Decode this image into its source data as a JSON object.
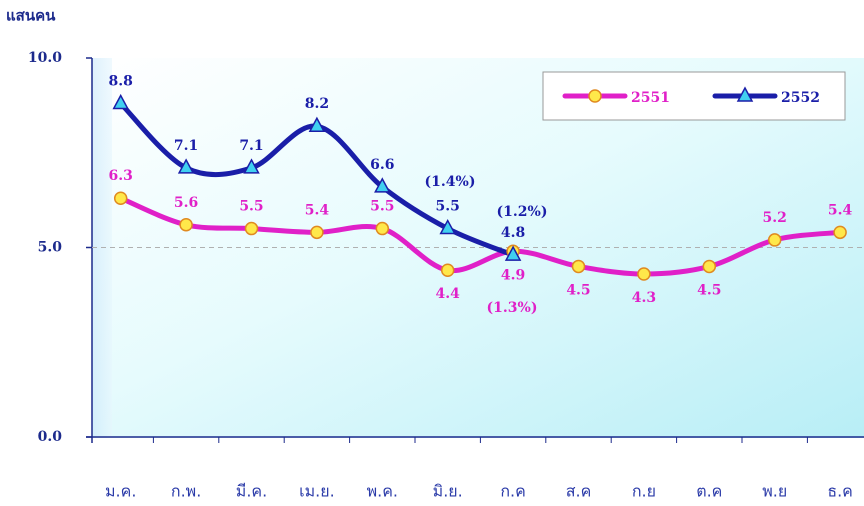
{
  "chart_data": {
    "type": "line",
    "y_label": "แสนคน",
    "categories": [
      "ม.ค.",
      "ก.พ.",
      "มี.ค.",
      "เม.ย.",
      "พ.ค.",
      "มิ.ย.",
      "ก.ค",
      "ส.ค",
      "ก.ย",
      "ต.ค",
      "พ.ย",
      "ธ.ค"
    ],
    "series": [
      {
        "name": "2551",
        "color": "#e020c8",
        "values": [
          6.3,
          5.6,
          5.5,
          5.4,
          5.5,
          4.4,
          4.9,
          4.5,
          4.3,
          4.5,
          5.2,
          5.4
        ]
      },
      {
        "name": "2552",
        "color": "#1a1ea8",
        "values": [
          8.8,
          7.1,
          7.1,
          8.2,
          6.6,
          5.5,
          4.8,
          null,
          null,
          null,
          null,
          null
        ]
      }
    ],
    "annotations": [
      "(1.4%)",
      "(1.2%)",
      "(1.3%)"
    ],
    "ylim": [
      0,
      10
    ],
    "yticks": [
      {
        "value": 0,
        "label": "0.0"
      },
      {
        "value": 5,
        "label": "5.0"
      },
      {
        "value": 10,
        "label": "10.0"
      }
    ],
    "grid": true,
    "legend": "top-right"
  }
}
